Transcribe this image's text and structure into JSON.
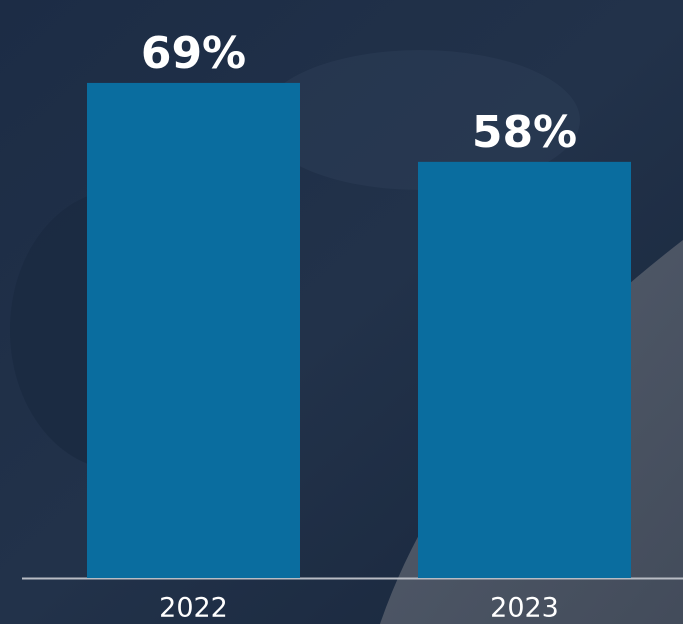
{
  "chart_data": {
    "type": "bar",
    "categories": [
      "2022",
      "2023"
    ],
    "values": [
      69,
      58
    ],
    "value_labels": [
      "69%",
      "58%"
    ],
    "color": "#0a6d9f",
    "ylim": [
      0,
      80
    ]
  }
}
